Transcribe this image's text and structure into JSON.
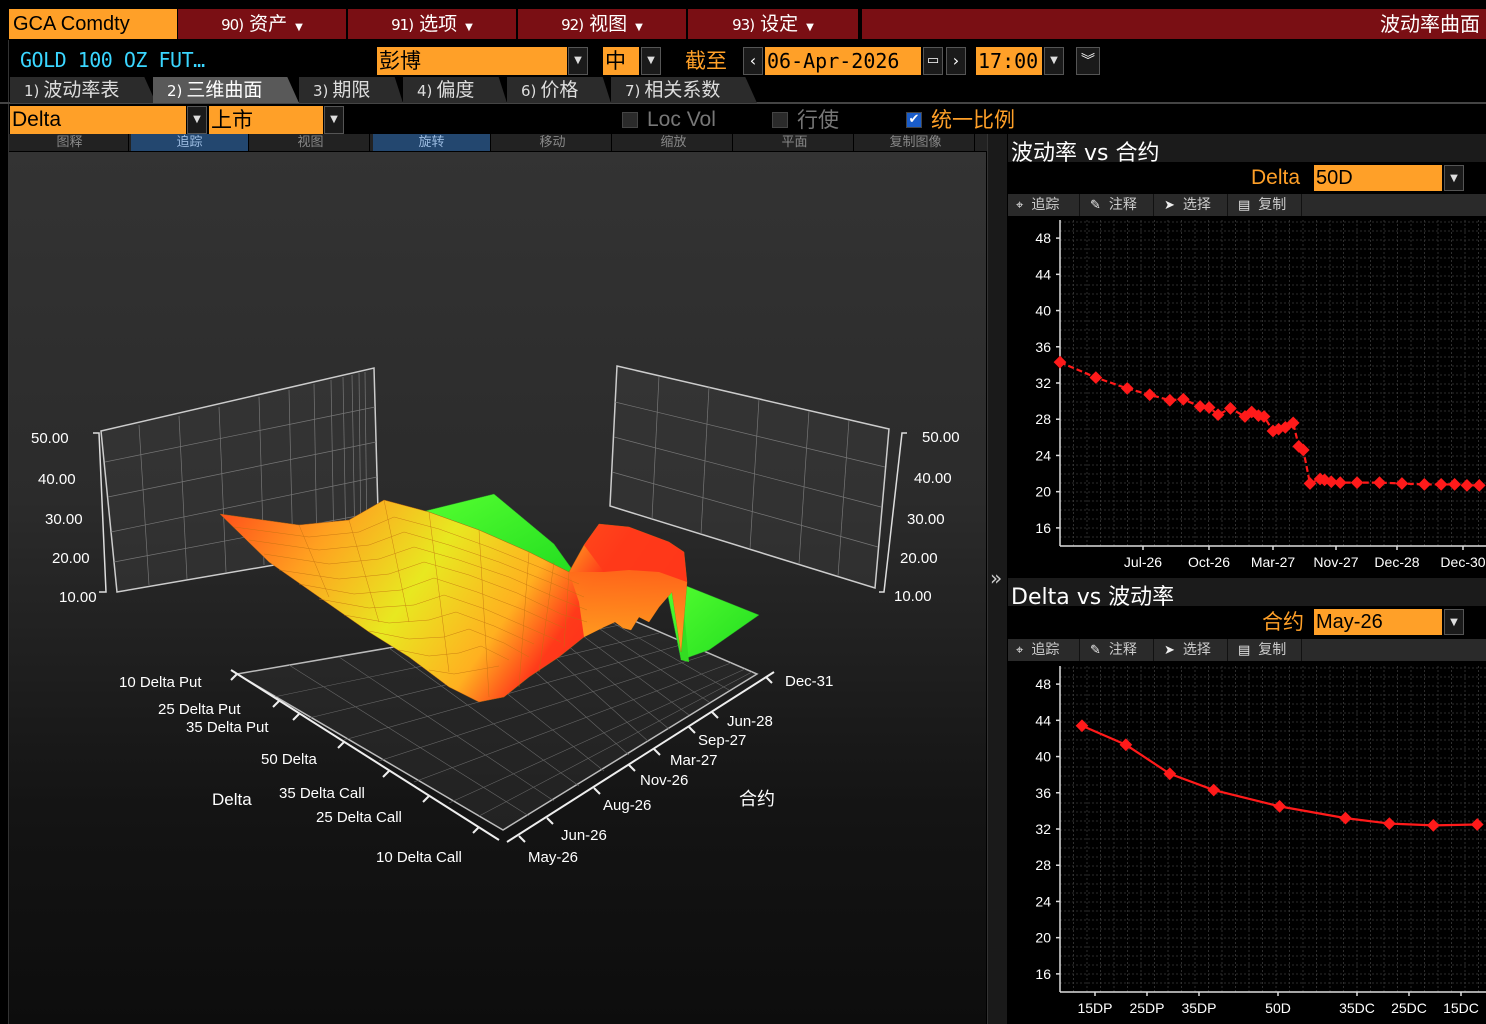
{
  "menubar": {
    "ticker": "GCA Comdty",
    "menus": [
      {
        "num": "90)",
        "label": "资产"
      },
      {
        "num": "91)",
        "label": "选项"
      },
      {
        "num": "92)",
        "label": "视图"
      },
      {
        "num": "93)",
        "label": "设定"
      }
    ],
    "title": "波动率曲面"
  },
  "header": {
    "security": "GOLD 100 OZ FUT…",
    "source": "彭博",
    "side": "中",
    "asof_label": "截至",
    "date": "06-Apr-2026",
    "time": "17:00"
  },
  "tabs": [
    {
      "num": "1)",
      "label": "波动率表"
    },
    {
      "num": "2)",
      "label": "三维曲面"
    },
    {
      "num": "3)",
      "label": "期限"
    },
    {
      "num": "4)",
      "label": "偏度"
    },
    {
      "num": "6)",
      "label": "价格"
    },
    {
      "num": "7)",
      "label": "相关系数"
    }
  ],
  "controls": {
    "axis_mode": "Delta",
    "listing": "上市",
    "loc_vol": "Loc Vol",
    "exercise": "行使",
    "uniform_scale": "统一比例"
  },
  "toolbar3d": [
    "图释",
    "追踪",
    "视图",
    "旋转",
    "移动",
    "缩放",
    "平面",
    "复制图像"
  ],
  "surface": {
    "z_ticks": [
      "50.00",
      "40.00",
      "30.00",
      "20.00",
      "10.00"
    ],
    "delta_axis_title": "Delta",
    "delta_labels": [
      "10 Delta Put",
      "25 Delta Put",
      "35 Delta Put",
      "50 Delta",
      "35 Delta Call",
      "25 Delta Call",
      "10 Delta Call"
    ],
    "contract_axis_title": "合约",
    "contract_labels": [
      "Dec-31",
      "Jun-28",
      "Sep-27",
      "Mar-27",
      "Nov-26",
      "Aug-26",
      "Jun-26",
      "May-26"
    ]
  },
  "splitter_icon": "»",
  "tools": {
    "track": "追踪",
    "annotate": "注释",
    "select": "选择",
    "copy": "复制"
  },
  "term_chart": {
    "title": "波动率 vs 合约",
    "selector_label": "Delta",
    "selector_value": "50D"
  },
  "skew_chart": {
    "title": "Delta vs 波动率",
    "selector_label": "合约",
    "selector_value": "May-26"
  },
  "chart_data": [
    {
      "type": "line",
      "title": "波动率 vs 合约",
      "x_tick_labels": [
        "Jul-26",
        "Oct-26",
        "Mar-27",
        "Nov-27",
        "Dec-28",
        "Dec-30"
      ],
      "y_ticks": [
        16,
        20,
        24,
        28,
        32,
        36,
        40,
        44,
        48
      ],
      "ylim": [
        14,
        50
      ],
      "color": "#ff1a1a",
      "x": [
        0,
        3.2,
        6,
        8,
        9.8,
        11,
        12.5,
        13.3,
        14.1,
        15.2,
        16.5,
        17.1,
        17.7,
        18.2,
        19,
        19.5,
        20.1,
        20.8,
        21.3,
        21.7,
        22.3,
        23.2,
        23.6,
        24.2,
        25,
        26.5,
        28.5,
        30.5,
        32.5,
        34,
        35.2,
        36.3,
        37.4
      ],
      "y": [
        34.3,
        32.6,
        31.4,
        30.7,
        30.1,
        30.2,
        29.4,
        29.3,
        28.5,
        29.2,
        28.3,
        28.8,
        28.4,
        28.3,
        26.7,
        26.9,
        27.1,
        27.6,
        25.0,
        24.6,
        20.9,
        21.4,
        21.3,
        21.1,
        21.0,
        21.0,
        21.0,
        20.9,
        20.8,
        20.8,
        20.8,
        20.7,
        20.7
      ],
      "xlim": [
        0,
        38
      ]
    },
    {
      "type": "line",
      "title": "Delta vs 波动率",
      "categories": [
        "15DP",
        "25DP",
        "35DP",
        "50D",
        "35DC",
        "25DC",
        "15DC"
      ],
      "x": [
        5,
        15,
        25,
        35,
        50,
        65,
        75,
        85,
        95
      ],
      "y": [
        43.4,
        41.3,
        38.1,
        36.3,
        34.5,
        33.2,
        32.6,
        32.4,
        32.5
      ],
      "tick_x": [
        15,
        25,
        35,
        50,
        65,
        75,
        85
      ],
      "y_ticks": [
        16,
        20,
        24,
        28,
        32,
        36,
        40,
        44,
        48
      ],
      "ylim": [
        14,
        50
      ],
      "xlim": [
        0,
        97
      ],
      "color": "#ff1a1a"
    }
  ]
}
